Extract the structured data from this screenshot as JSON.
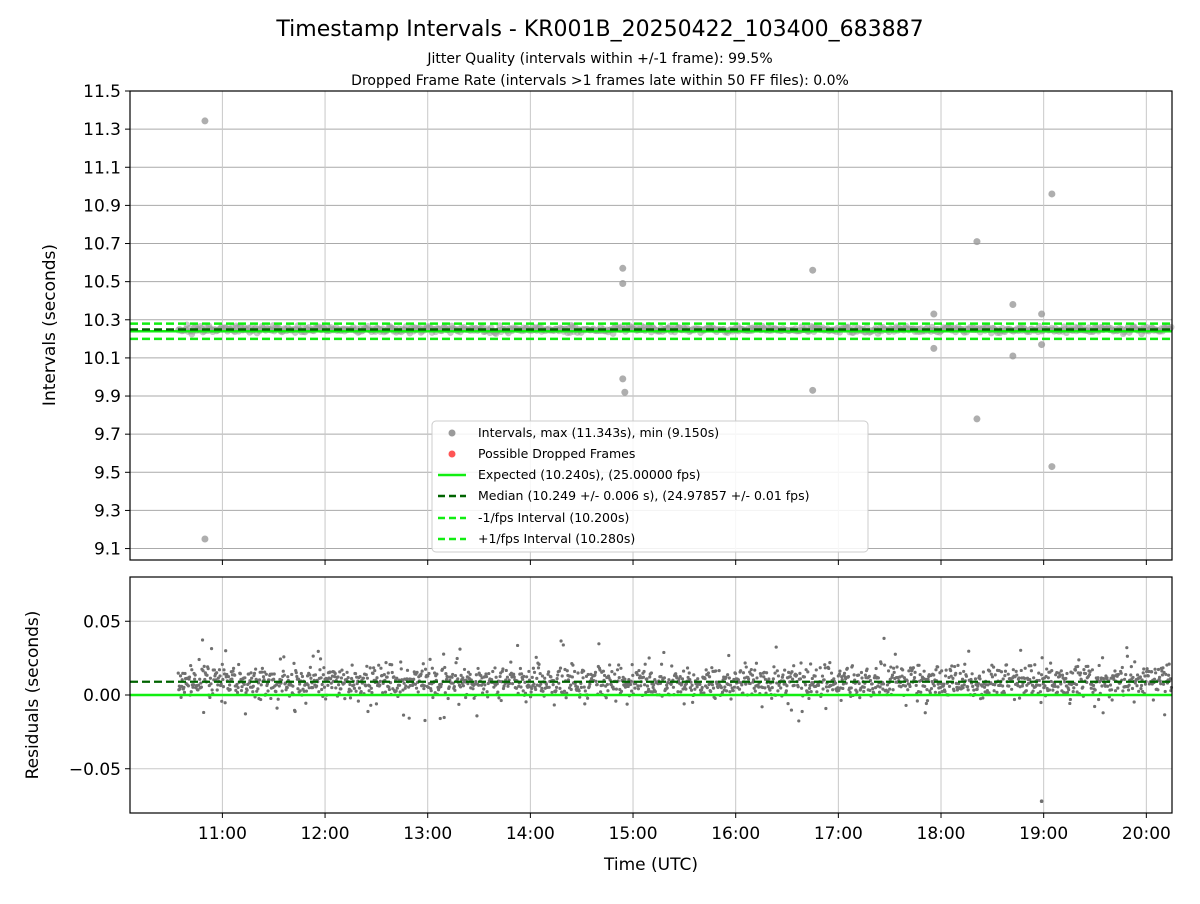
{
  "colors": {
    "interval_points": "#9a9a9a",
    "dropped_points": "#ff5555",
    "expected_line": "#11ee11",
    "median_line": "#006400",
    "fps_bounds": "#11ee11",
    "residual_points": "#707070",
    "grid": "#c8c8c8",
    "hgrid_top": "#aaaaaa"
  },
  "chart_data": [
    {
      "type": "scatter",
      "title": "Timestamp Intervals - KR001B_20250422_103400_683887",
      "subtitle_lines": [
        "Jitter Quality (intervals within +/-1 frame): 99.5%",
        "Dropped Frame Rate (intervals >1 frames late within 50 FF files): 0.0%"
      ],
      "xlabel": "",
      "ylabel": "Intervals (seconds)",
      "x_unit": "hours (UTC)",
      "xlim": [
        10.1,
        20.25
      ],
      "ylim": [
        9.04,
        11.5
      ],
      "yticks": [
        9.1,
        9.3,
        9.5,
        9.7,
        9.9,
        10.1,
        10.3,
        10.5,
        10.7,
        10.9,
        11.1,
        11.3,
        11.5
      ],
      "ytick_labels": [
        "9.1",
        "9.3",
        "9.5",
        "9.7",
        "9.9",
        "10.1",
        "10.3",
        "10.5",
        "10.7",
        "10.9",
        "11.1",
        "11.3",
        "11.5"
      ],
      "grid": true,
      "legend_position": "lower-center",
      "legend": [
        "Intervals, max (11.343s), min (9.150s)",
        "Possible Dropped Frames",
        "Expected (10.240s), (25.00000 fps)",
        "Median (10.249 +/- 0.006 s), (24.97857 +/- 0.01 fps)",
        "-1/fps Interval (10.200s)",
        "+1/fps Interval (10.280s)"
      ],
      "lines": {
        "expected": 10.24,
        "median": 10.249,
        "minus_1fps": 10.2,
        "plus_1fps": 10.28
      },
      "series_range": [
        10.57,
        20.25
      ],
      "outliers": [
        [
          10.83,
          11.343
        ],
        [
          10.83,
          9.15
        ],
        [
          14.9,
          10.57
        ],
        [
          14.9,
          10.49
        ],
        [
          14.9,
          9.99
        ],
        [
          14.92,
          9.92
        ],
        [
          16.75,
          10.56
        ],
        [
          16.75,
          9.93
        ],
        [
          17.93,
          10.33
        ],
        [
          17.93,
          10.15
        ],
        [
          18.35,
          10.71
        ],
        [
          18.35,
          9.78
        ],
        [
          18.7,
          10.38
        ],
        [
          18.7,
          10.11
        ],
        [
          18.98,
          10.33
        ],
        [
          18.98,
          10.17
        ],
        [
          19.08,
          10.96
        ],
        [
          19.08,
          9.53
        ]
      ]
    },
    {
      "type": "scatter",
      "title": "",
      "xlabel": "Time (UTC)",
      "ylabel": "Residuals (seconds)",
      "x_unit": "hours (UTC)",
      "xlim": [
        10.1,
        20.25
      ],
      "ylim": [
        -0.08,
        0.08
      ],
      "yticks": [
        -0.05,
        0.0,
        0.05
      ],
      "ytick_labels": [
        "−0.05",
        "0.00",
        "0.05"
      ],
      "xticks": [
        11,
        12,
        13,
        14,
        15,
        16,
        17,
        18,
        19,
        20
      ],
      "xtick_labels": [
        "11:00",
        "12:00",
        "13:00",
        "14:00",
        "15:00",
        "16:00",
        "17:00",
        "18:00",
        "19:00",
        "20:00"
      ],
      "grid": true,
      "lines": {
        "expected": 0.0,
        "median": 0.009
      },
      "series_range": [
        10.57,
        20.25
      ],
      "outliers": [
        [
          18.98,
          -0.072
        ]
      ]
    }
  ]
}
